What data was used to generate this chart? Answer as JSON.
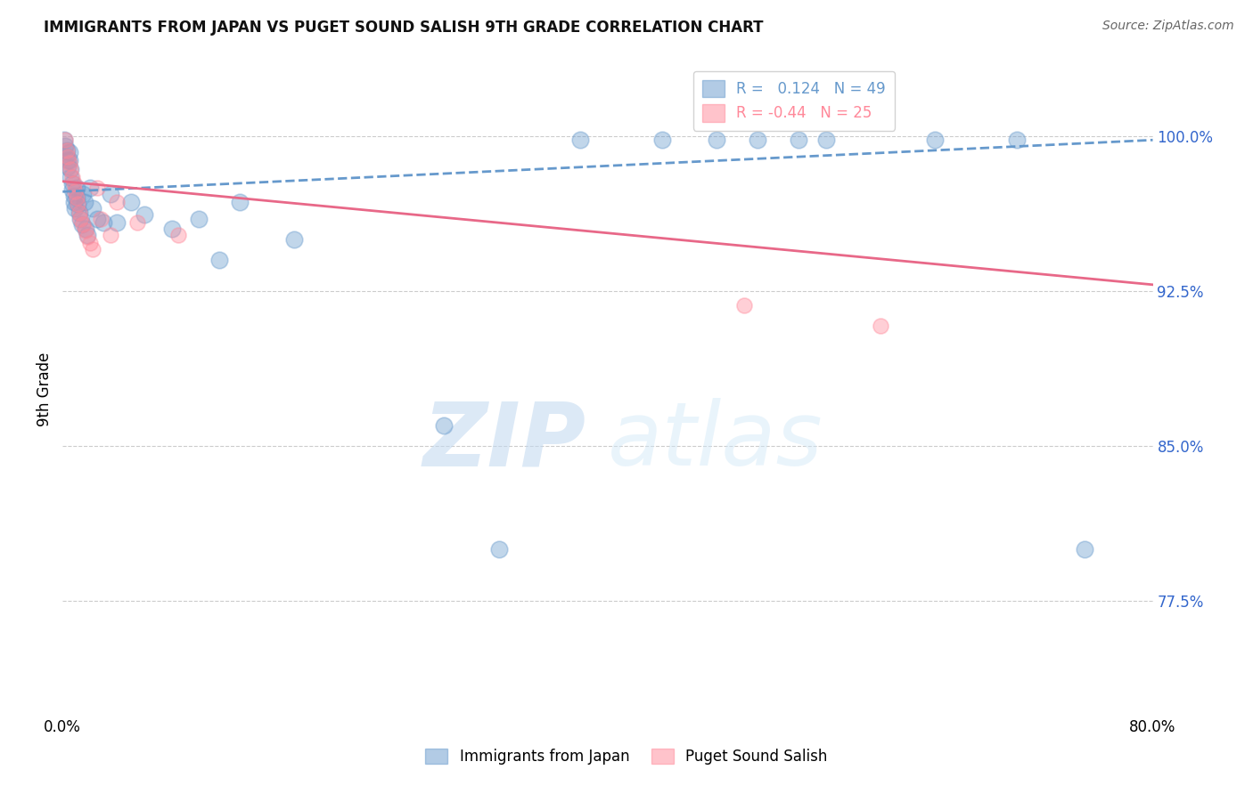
{
  "title": "IMMIGRANTS FROM JAPAN VS PUGET SOUND SALISH 9TH GRADE CORRELATION CHART",
  "source": "Source: ZipAtlas.com",
  "ylabel": "9th Grade",
  "yticks": [
    0.775,
    0.85,
    0.925,
    1.0
  ],
  "ytick_labels": [
    "77.5%",
    "85.0%",
    "92.5%",
    "100.0%"
  ],
  "xlim": [
    0.0,
    0.8
  ],
  "ylim": [
    0.72,
    1.035
  ],
  "blue_R": 0.124,
  "blue_N": 49,
  "pink_R": -0.44,
  "pink_N": 25,
  "blue_color": "#6699CC",
  "pink_color": "#FF8899",
  "blue_scatter": [
    [
      0.001,
      0.998
    ],
    [
      0.002,
      0.995
    ],
    [
      0.003,
      0.993
    ],
    [
      0.003,
      0.99
    ],
    [
      0.004,
      0.988
    ],
    [
      0.004,
      0.985
    ],
    [
      0.005,
      0.992
    ],
    [
      0.005,
      0.988
    ],
    [
      0.006,
      0.984
    ],
    [
      0.006,
      0.98
    ],
    [
      0.007,
      0.977
    ],
    [
      0.007,
      0.974
    ],
    [
      0.008,
      0.971
    ],
    [
      0.008,
      0.968
    ],
    [
      0.009,
      0.965
    ],
    [
      0.01,
      0.975
    ],
    [
      0.01,
      0.97
    ],
    [
      0.011,
      0.967
    ],
    [
      0.012,
      0.963
    ],
    [
      0.013,
      0.96
    ],
    [
      0.014,
      0.957
    ],
    [
      0.015,
      0.972
    ],
    [
      0.016,
      0.968
    ],
    [
      0.017,
      0.955
    ],
    [
      0.018,
      0.952
    ],
    [
      0.02,
      0.975
    ],
    [
      0.022,
      0.965
    ],
    [
      0.025,
      0.96
    ],
    [
      0.03,
      0.958
    ],
    [
      0.035,
      0.972
    ],
    [
      0.04,
      0.958
    ],
    [
      0.05,
      0.968
    ],
    [
      0.06,
      0.962
    ],
    [
      0.08,
      0.955
    ],
    [
      0.1,
      0.96
    ],
    [
      0.115,
      0.94
    ],
    [
      0.13,
      0.968
    ],
    [
      0.17,
      0.95
    ],
    [
      0.28,
      0.86
    ],
    [
      0.32,
      0.8
    ],
    [
      0.38,
      0.998
    ],
    [
      0.44,
      0.998
    ],
    [
      0.48,
      0.998
    ],
    [
      0.51,
      0.998
    ],
    [
      0.54,
      0.998
    ],
    [
      0.56,
      0.998
    ],
    [
      0.64,
      0.998
    ],
    [
      0.7,
      0.998
    ],
    [
      0.75,
      0.8
    ]
  ],
  "pink_scatter": [
    [
      0.002,
      0.998
    ],
    [
      0.003,
      0.993
    ],
    [
      0.004,
      0.99
    ],
    [
      0.005,
      0.987
    ],
    [
      0.006,
      0.984
    ],
    [
      0.007,
      0.98
    ],
    [
      0.008,
      0.977
    ],
    [
      0.009,
      0.973
    ],
    [
      0.01,
      0.97
    ],
    [
      0.011,
      0.967
    ],
    [
      0.012,
      0.963
    ],
    [
      0.013,
      0.96
    ],
    [
      0.015,
      0.957
    ],
    [
      0.017,
      0.954
    ],
    [
      0.018,
      0.951
    ],
    [
      0.02,
      0.948
    ],
    [
      0.022,
      0.945
    ],
    [
      0.025,
      0.975
    ],
    [
      0.028,
      0.96
    ],
    [
      0.035,
      0.952
    ],
    [
      0.04,
      0.968
    ],
    [
      0.055,
      0.958
    ],
    [
      0.085,
      0.952
    ],
    [
      0.5,
      0.918
    ],
    [
      0.6,
      0.908
    ]
  ],
  "blue_line_y0": 0.973,
  "blue_line_y1": 0.998,
  "pink_line_y0": 0.978,
  "pink_line_y1": 0.928,
  "blue_marker_size": 180,
  "pink_marker_size": 150,
  "watermark_zip": "ZIP",
  "watermark_atlas": "atlas",
  "legend_label_blue": "Immigrants from Japan",
  "legend_label_pink": "Puget Sound Salish",
  "background_color": "#ffffff",
  "grid_color": "#cccccc"
}
